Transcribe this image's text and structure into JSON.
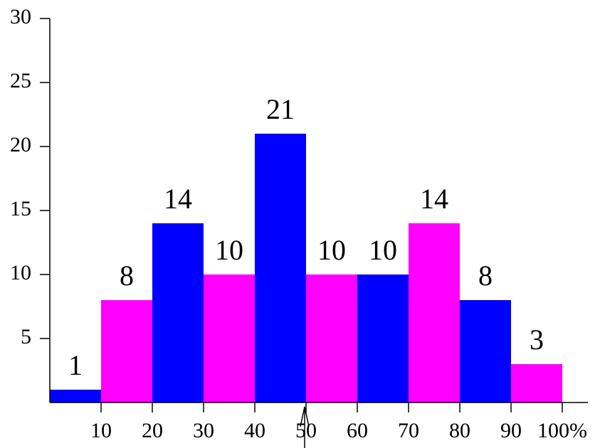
{
  "chart_data": {
    "type": "histogram",
    "bins": [
      0,
      10,
      20,
      30,
      40,
      50,
      60,
      70,
      80,
      90,
      100
    ],
    "values": [
      1,
      8,
      14,
      10,
      21,
      10,
      10,
      14,
      8,
      3
    ],
    "colors": [
      "#0000ff",
      "#ff00ff",
      "#0000ff",
      "#ff00ff",
      "#0000ff",
      "#ff00ff",
      "#0000ff",
      "#ff00ff",
      "#0000ff",
      "#ff00ff"
    ],
    "xlim": [
      0,
      105
    ],
    "ylim": [
      0,
      30
    ],
    "xticks": [
      10,
      20,
      30,
      40,
      50,
      60,
      70,
      80,
      90,
      {
        "value": 100,
        "label": "100%"
      }
    ],
    "yticks": [
      5,
      10,
      15,
      20,
      25,
      30
    ],
    "marker_x": 50
  }
}
